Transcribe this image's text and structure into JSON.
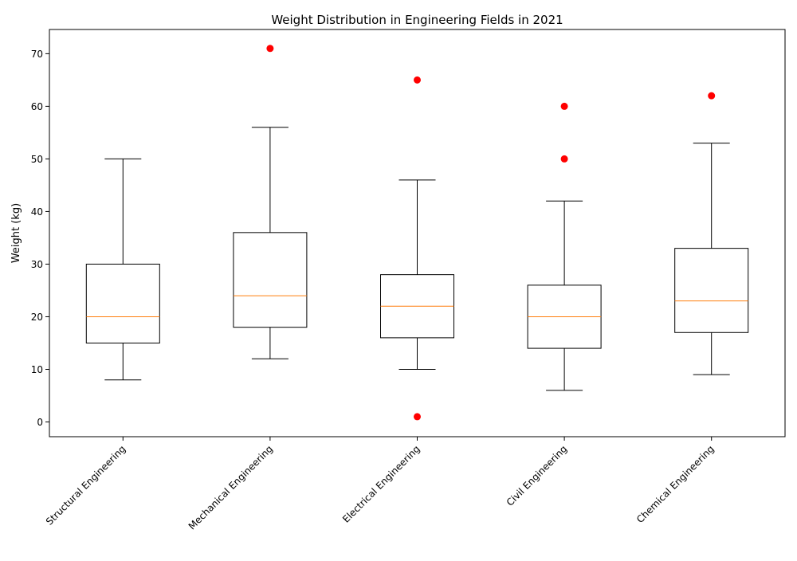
{
  "chart_data": {
    "type": "box",
    "title": "Weight Distribution in Engineering Fields in 2021",
    "xlabel": "",
    "ylabel": "Weight (kg)",
    "ylim": [
      -2.8,
      74.6
    ],
    "yticks": [
      0,
      10,
      20,
      30,
      40,
      50,
      60,
      70
    ],
    "grid": false,
    "categories": [
      "Structural Engineering",
      "Mechanical Engineering",
      "Electrical Engineering",
      "Civil Engineering",
      "Chemical Engineering"
    ],
    "boxes": [
      {
        "min": 8,
        "q1": 15,
        "median": 20,
        "q3": 30,
        "max": 50,
        "outliers": []
      },
      {
        "min": 12,
        "q1": 18,
        "median": 24,
        "q3": 36,
        "max": 56,
        "outliers": [
          71
        ]
      },
      {
        "min": 10,
        "q1": 16,
        "median": 22,
        "q3": 28,
        "max": 46,
        "outliers": [
          1,
          65
        ]
      },
      {
        "min": 6,
        "q1": 14,
        "median": 20,
        "q3": 26,
        "max": 42,
        "outliers": [
          50,
          60
        ]
      },
      {
        "min": 9,
        "q1": 17,
        "median": 23,
        "q3": 33,
        "max": 53,
        "outliers": [
          62
        ]
      }
    ],
    "colors": {
      "box": "#000000",
      "median": "#ff7f0e",
      "outlier": "#ff0000"
    }
  }
}
